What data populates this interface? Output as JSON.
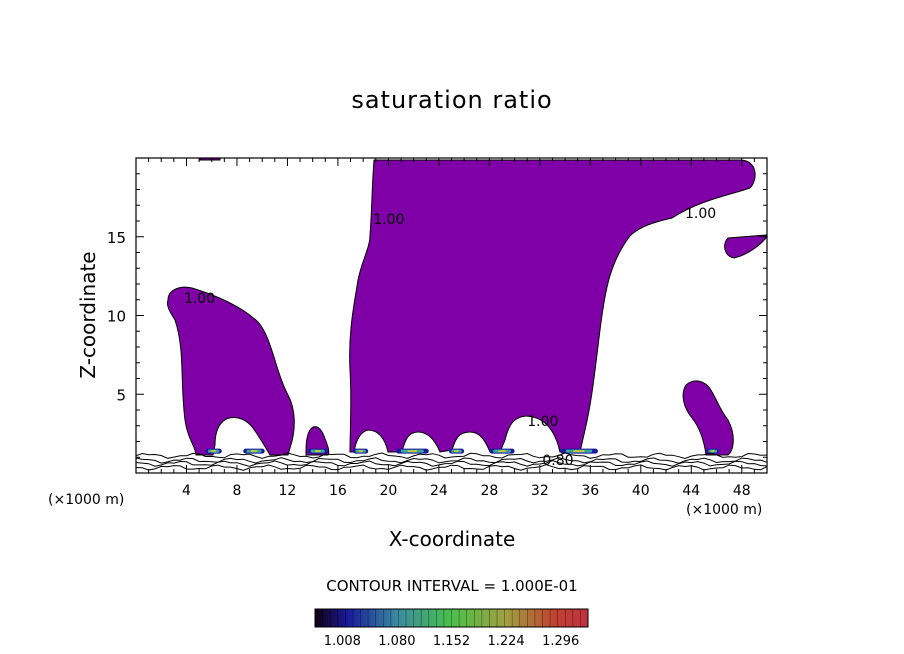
{
  "chart_data": {
    "type": "heatmap",
    "title": "saturation ratio",
    "xlabel": "X-coordinate",
    "ylabel": "Z-coordinate",
    "x_unit_label": "(×1000 m)",
    "xlim": [
      0,
      50
    ],
    "ylim": [
      0,
      20
    ],
    "x_ticks": [
      4,
      8,
      12,
      16,
      20,
      24,
      28,
      32,
      36,
      40,
      44,
      48
    ],
    "y_ticks": [
      5,
      10,
      15
    ],
    "contour_interval_label": "CONTOUR INTERVAL = 1.000E-01",
    "contour_labels": [
      {
        "text": "1.00",
        "x": 3.8,
        "y": 10.8
      },
      {
        "text": "1.00",
        "x": 18.8,
        "y": 15.8
      },
      {
        "text": "1.00",
        "x": 43.5,
        "y": 16.2
      },
      {
        "text": "1.00",
        "x": 31.0,
        "y": 3.0
      },
      {
        "text": "0.80",
        "x": 32.2,
        "y": 0.5
      }
    ],
    "colorbar": {
      "tick_labels": [
        "1.008",
        "1.080",
        "1.152",
        "1.224",
        "1.296"
      ],
      "range": [
        0.972,
        1.332
      ]
    },
    "colors": {
      "supersaturated_fill": "#7f00a6",
      "contour_line": "#000000"
    }
  }
}
